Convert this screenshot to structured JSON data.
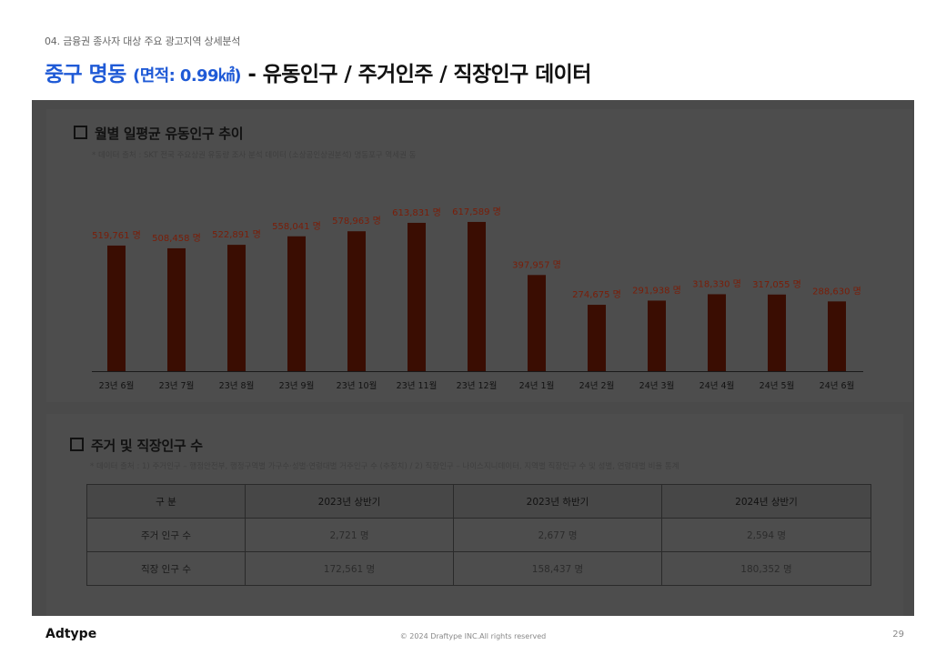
{
  "header": {
    "breadcrumb": "04. 금융권 종사자 대상 주요 광고지역 상세분석",
    "title_location": "중구 명동",
    "title_area": "(면적: 0.99㎢)",
    "title_rest": "- 유동인구  /  주거인주  /  직장인구 데이터"
  },
  "floating_section": {
    "title": "월별 일평균 유동인구 추이",
    "note": "* 데이터 출처 : SKT 전국 주요상권 유동량 조사 분석 데이터 (소상공인상권분석) 명동포구 역세권 동"
  },
  "chart_data": {
    "type": "bar",
    "categories": [
      "23년 6월",
      "23년 7월",
      "23년 8월",
      "23년 9월",
      "23년 10월",
      "23년 11월",
      "23년 12월",
      "24년 1월",
      "24년 2월",
      "24년 3월",
      "24년 4월",
      "24년 5월",
      "24년 6월"
    ],
    "values": [
      519761,
      508458,
      522891,
      558041,
      578963,
      613831,
      617589,
      397957,
      274675,
      291938,
      318330,
      317055,
      288630
    ],
    "value_labels": [
      "519,761 명",
      "508,458 명",
      "522,891 명",
      "558,041 명",
      "578,963 명",
      "613,831 명",
      "617,589 명",
      "397,957 명",
      "274,675 명",
      "291,938 명",
      "318,330 명",
      "317,055 명",
      "288,630 명"
    ],
    "ylim": [
      0,
      640000
    ],
    "bar_color": "#3a0d02",
    "label_color": "#7a1d08"
  },
  "residence_section": {
    "title": "주거 및 직장인구 수",
    "note": "* 데이터 출처 : 1) 주거인구 – 행정안전부, 행정구역별 가구수·성별·연령대별 거주인구 수 (추정치) / 2) 직장인구 – 나이스지니데이터, 지역별 직장인구 수 및 성별, 연령대별 비율 통계",
    "table": {
      "headers": [
        "구 분",
        "2023년 상반기",
        "2023년 하반기",
        "2024년 상반기"
      ],
      "rows": [
        [
          "주거 인구 수",
          "2,721 명",
          "2,677 명",
          "2,594 명"
        ],
        [
          "직장 인구 수",
          "172,561 명",
          "158,437 명",
          "180,352 명"
        ]
      ]
    }
  },
  "footer": {
    "logo": "Adtype",
    "copyright": "© 2024 Draftype INC.All rights reserved",
    "page": "29"
  }
}
